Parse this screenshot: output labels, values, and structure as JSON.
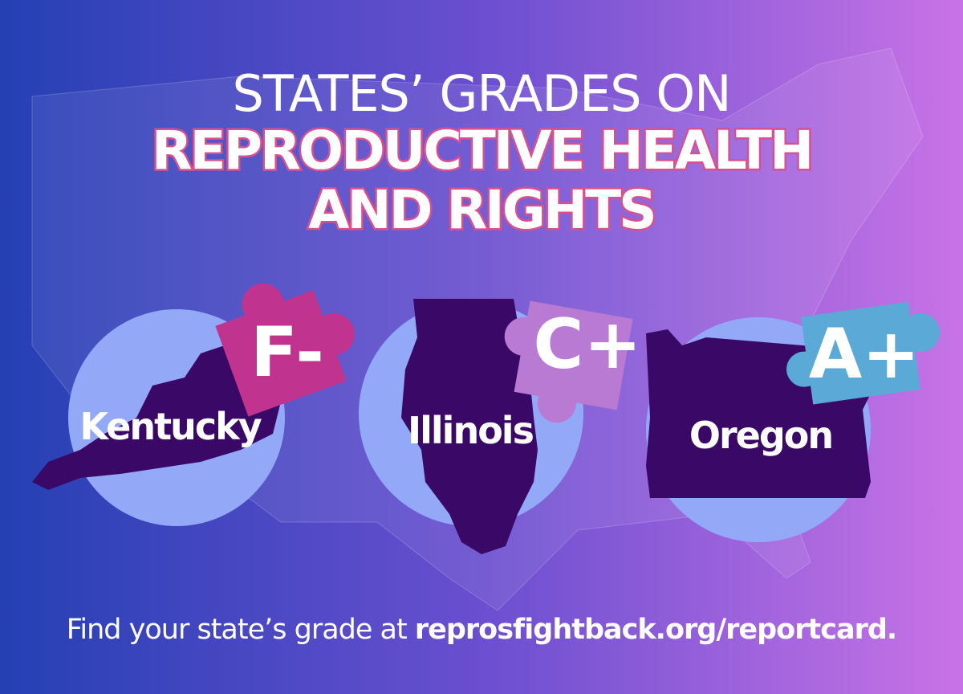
{
  "title": {
    "lines": [
      "STATES’ GRADES ON",
      "REPRODUCTIVE HEALTH",
      "AND RIGHTS"
    ]
  },
  "states": [
    {
      "name": "Kentucky",
      "grade": "F-"
    },
    {
      "name": "Illinois",
      "grade": "C+"
    },
    {
      "name": "Oregon",
      "grade": "A+"
    }
  ],
  "footer": {
    "text": "Find your state’s grade at",
    "link": "reprosfightback.org/reportcard."
  }
}
